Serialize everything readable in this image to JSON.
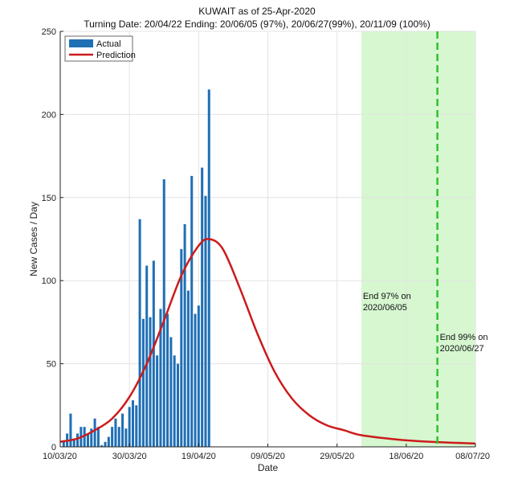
{
  "chart_data": {
    "type": "bar",
    "title": "KUWAIT as of 25-Apr-2020",
    "subtitle": "Turning Date: 20/04/22   Ending: 20/06/05 (97%), 20/06/27(99%), 20/11/09 (100%)",
    "xlabel": "Date",
    "ylabel": "New Cases / Day",
    "x_start": "2020-03-10",
    "x_end": "2020-07-08",
    "ylim": [
      0,
      250
    ],
    "yticks": [
      0,
      50,
      100,
      150,
      200,
      250
    ],
    "xtick_labels": [
      "10/03/20",
      "30/03/20",
      "19/04/20",
      "09/05/20",
      "29/05/20",
      "18/06/20",
      "08/07/20"
    ],
    "xtick_dates": [
      "2020-03-10",
      "2020-03-30",
      "2020-04-19",
      "2020-05-09",
      "2020-05-29",
      "2020-06-18",
      "2020-07-08"
    ],
    "grid": true,
    "legend": {
      "position": "top-left",
      "actual": "Actual",
      "prediction": "Prediction"
    },
    "colors": {
      "bars": "#1f6fb5",
      "prediction": "#cc1b1b",
      "shade": "#d6f7d0",
      "end99": "#2fc22f"
    },
    "series": [
      {
        "name": "Actual",
        "type": "bar",
        "dates": [
          "2020-03-11",
          "2020-03-12",
          "2020-03-13",
          "2020-03-14",
          "2020-03-15",
          "2020-03-16",
          "2020-03-17",
          "2020-03-18",
          "2020-03-19",
          "2020-03-20",
          "2020-03-21",
          "2020-03-22",
          "2020-03-23",
          "2020-03-24",
          "2020-03-25",
          "2020-03-26",
          "2020-03-27",
          "2020-03-28",
          "2020-03-29",
          "2020-03-30",
          "2020-03-31",
          "2020-04-01",
          "2020-04-02",
          "2020-04-03",
          "2020-04-04",
          "2020-04-05",
          "2020-04-06",
          "2020-04-07",
          "2020-04-08",
          "2020-04-09",
          "2020-04-10",
          "2020-04-11",
          "2020-04-12",
          "2020-04-13",
          "2020-04-14",
          "2020-04-15",
          "2020-04-16",
          "2020-04-17",
          "2020-04-18",
          "2020-04-19",
          "2020-04-20",
          "2020-04-21",
          "2020-04-22",
          "2020-04-23",
          "2020-04-24",
          "2020-04-25"
        ],
        "values": [
          4,
          8,
          20,
          5,
          8,
          12,
          12,
          8,
          11,
          17,
          12,
          1,
          3,
          6,
          12,
          17,
          12,
          20,
          11,
          24,
          28,
          25,
          137,
          77,
          109,
          78,
          112,
          55,
          83,
          161,
          80,
          66,
          55,
          50,
          119,
          134,
          94,
          163,
          80,
          85,
          168,
          151,
          215,
          0,
          0,
          0
        ]
      },
      {
        "name": "Prediction",
        "type": "line",
        "peak_date": "2020-04-22",
        "peak_value": 125,
        "x": [
          "2020-03-10",
          "2020-03-15",
          "2020-03-20",
          "2020-03-25",
          "2020-03-30",
          "2020-04-04",
          "2020-04-09",
          "2020-04-14",
          "2020-04-19",
          "2020-04-22",
          "2020-04-26",
          "2020-05-01",
          "2020-05-06",
          "2020-05-11",
          "2020-05-16",
          "2020-05-21",
          "2020-05-26",
          "2020-05-31",
          "2020-06-05",
          "2020-06-15",
          "2020-06-25",
          "2020-07-08"
        ],
        "values": [
          3,
          5,
          10,
          17,
          30,
          50,
          76,
          103,
          121,
          125,
          119,
          95,
          68,
          45,
          29,
          19,
          13,
          10,
          7,
          4.5,
          3,
          2
        ]
      }
    ],
    "shaded_region": {
      "from": "2020-06-05",
      "to": "2020-07-08"
    },
    "vline": {
      "date": "2020-06-27"
    },
    "annotations": [
      {
        "date": "2020-06-05",
        "line1": "End 97% on",
        "line2": "2020/06/05"
      },
      {
        "date": "2020-06-27",
        "line1": "End 99% on",
        "line2": "2020/06/27"
      }
    ]
  }
}
